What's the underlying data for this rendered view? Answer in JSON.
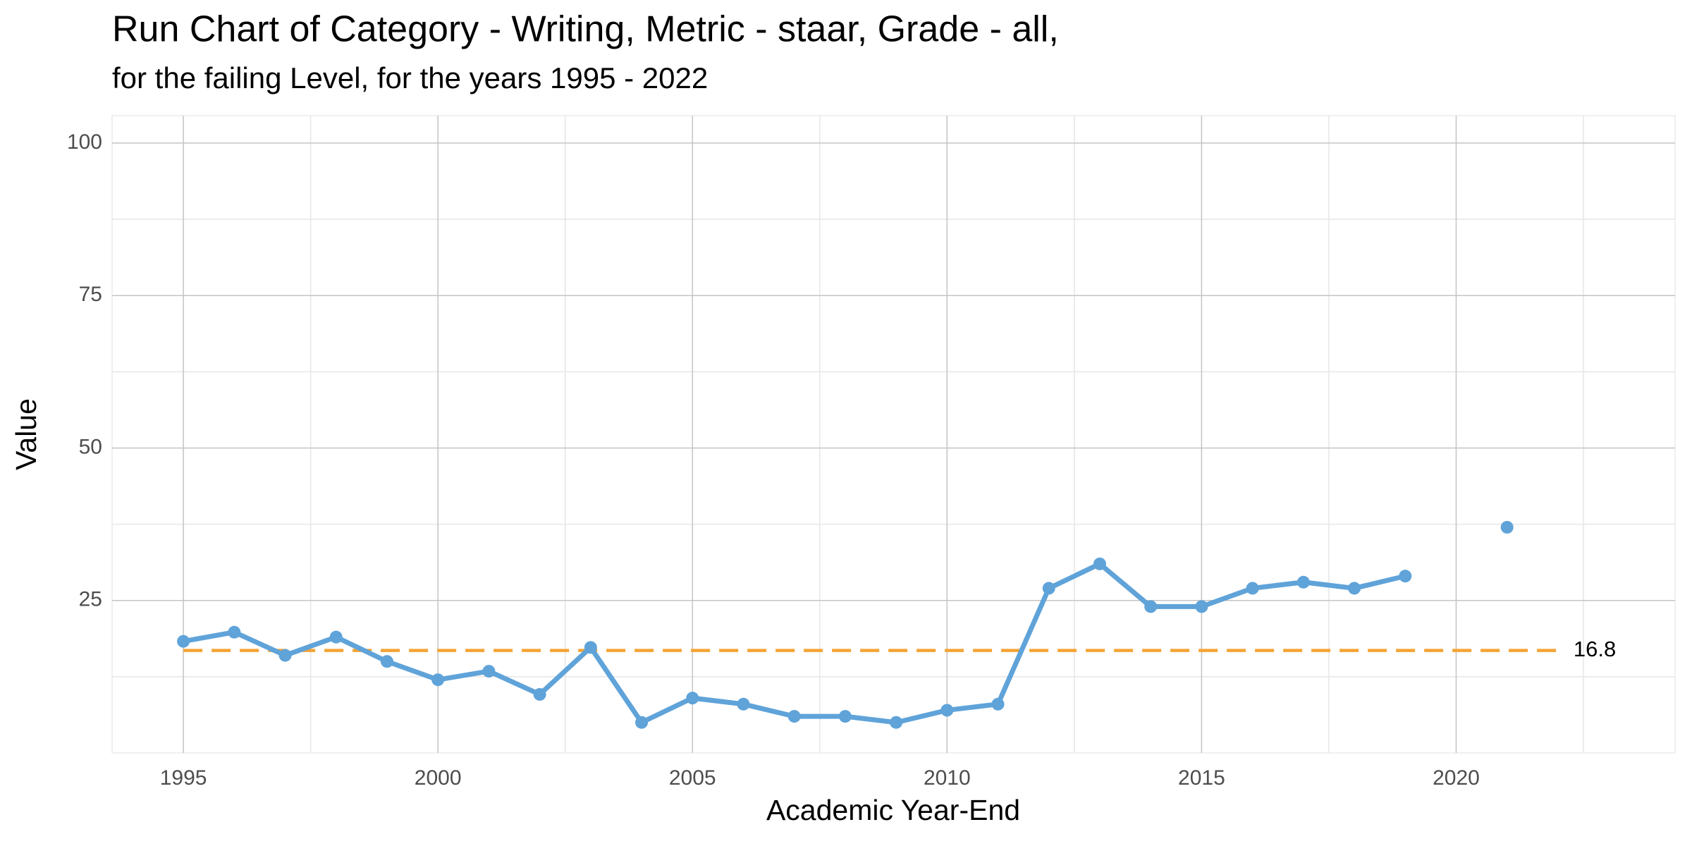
{
  "chart_data": {
    "type": "line",
    "title": "Run Chart of Category - Writing, Metric - staar, Grade - all,",
    "subtitle": "for the failing Level, for the years 1995 - 2022",
    "x_label": "Academic Year-End",
    "y_label": "Value",
    "x": [
      1995,
      1996,
      1997,
      1998,
      1999,
      2000,
      2001,
      2002,
      2003,
      2004,
      2005,
      2006,
      2007,
      2008,
      2009,
      2010,
      2011,
      2012,
      2013,
      2014,
      2015,
      2016,
      2017,
      2018,
      2019,
      2020,
      2021
    ],
    "series": [
      {
        "color": "#5fa3d9",
        "values": [
          18.3,
          19.8,
          16,
          19,
          15,
          12,
          13.4,
          9.6,
          17.3,
          5,
          9,
          8,
          6,
          6,
          5,
          7,
          8,
          27,
          31,
          24,
          24,
          27,
          28,
          27,
          29,
          null,
          37
        ]
      }
    ],
    "reference_line": {
      "value": 16.8,
      "x_range": [
        1995,
        2022
      ],
      "color": "#f5a334",
      "dashed": true
    },
    "xlim": [
      1993.6,
      2024.3
    ],
    "xticks": [
      1995,
      2000,
      2005,
      2010,
      2015,
      2020
    ],
    "ylim": [
      0,
      104.5
    ],
    "yticks": [
      25,
      50,
      75,
      100
    ],
    "grid": true
  }
}
